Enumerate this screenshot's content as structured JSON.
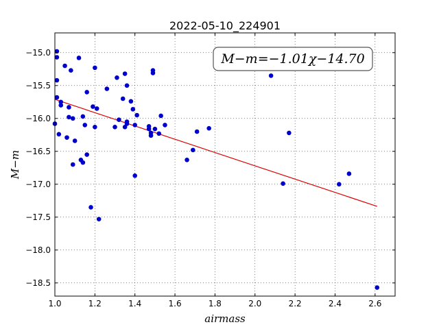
{
  "chart_data": {
    "type": "scatter",
    "title": "2022-05-10_224901",
    "xlabel": "airmass",
    "ylabel": "M−m",
    "xlim": [
      1.0,
      2.7
    ],
    "ylim": [
      -18.7,
      -14.7
    ],
    "y_inverted": true,
    "grid": true,
    "grid_style": "dotted",
    "xticks": [
      1.0,
      1.2,
      1.4,
      1.6,
      1.8,
      2.0,
      2.2,
      2.4,
      2.6
    ],
    "xtick_labels": [
      "1.0",
      "1.2",
      "1.4",
      "1.6",
      "1.8",
      "2.0",
      "2.2",
      "2.4",
      "2.6"
    ],
    "yticks": [
      -15.0,
      -15.5,
      -16.0,
      -16.5,
      -17.0,
      -17.5,
      -18.0,
      -18.5
    ],
    "ytick_labels": [
      "−15.0",
      "−15.5",
      "−16.0",
      "−16.5",
      "−17.0",
      "−17.5",
      "−18.0",
      "−18.5"
    ],
    "annotation": "M−m=−1.01χ−14.70",
    "point_color": "#0000cc",
    "fit_color": "#dd0000",
    "fit": {
      "slope": -1.01,
      "intercept": -14.7,
      "x_range": [
        1.0,
        2.61
      ]
    },
    "points": [
      [
        1.0,
        -16.08
      ],
      [
        1.01,
        -14.98
      ],
      [
        1.01,
        -15.07
      ],
      [
        1.01,
        -15.42
      ],
      [
        1.01,
        -15.68
      ],
      [
        1.02,
        -16.24
      ],
      [
        1.03,
        -15.75
      ],
      [
        1.03,
        -15.8
      ],
      [
        1.05,
        -15.2
      ],
      [
        1.06,
        -16.29
      ],
      [
        1.07,
        -15.98
      ],
      [
        1.07,
        -15.83
      ],
      [
        1.08,
        -15.27
      ],
      [
        1.09,
        -16.0
      ],
      [
        1.09,
        -16.7
      ],
      [
        1.1,
        -16.34
      ],
      [
        1.12,
        -15.08
      ],
      [
        1.13,
        -16.63
      ],
      [
        1.14,
        -15.97
      ],
      [
        1.14,
        -16.67
      ],
      [
        1.15,
        -16.1
      ],
      [
        1.16,
        -15.6
      ],
      [
        1.16,
        -16.55
      ],
      [
        1.18,
        -17.35
      ],
      [
        1.19,
        -15.82
      ],
      [
        1.2,
        -15.23
      ],
      [
        1.2,
        -16.13
      ],
      [
        1.21,
        -15.85
      ],
      [
        1.22,
        -17.53
      ],
      [
        1.26,
        -15.55
      ],
      [
        1.3,
        -16.13
      ],
      [
        1.31,
        -15.38
      ],
      [
        1.32,
        -16.02
      ],
      [
        1.34,
        -15.7
      ],
      [
        1.35,
        -15.32
      ],
      [
        1.35,
        -16.13
      ],
      [
        1.36,
        -15.5
      ],
      [
        1.36,
        -16.08
      ],
      [
        1.36,
        -16.05
      ],
      [
        1.38,
        -15.74
      ],
      [
        1.39,
        -15.86
      ],
      [
        1.4,
        -16.1
      ],
      [
        1.4,
        -16.87
      ],
      [
        1.41,
        -15.95
      ],
      [
        1.47,
        -16.12
      ],
      [
        1.47,
        -16.16
      ],
      [
        1.48,
        -16.22
      ],
      [
        1.48,
        -16.26
      ],
      [
        1.49,
        -15.27
      ],
      [
        1.49,
        -15.31
      ],
      [
        1.5,
        -16.16
      ],
      [
        1.52,
        -16.23
      ],
      [
        1.53,
        -15.96
      ],
      [
        1.55,
        -16.1
      ],
      [
        1.66,
        -16.63
      ],
      [
        1.69,
        -16.48
      ],
      [
        1.71,
        -16.2
      ],
      [
        1.77,
        -16.15
      ],
      [
        2.08,
        -15.35
      ],
      [
        2.14,
        -16.99
      ],
      [
        2.17,
        -16.22
      ],
      [
        2.42,
        -17.0
      ],
      [
        2.47,
        -16.84
      ],
      [
        2.61,
        -18.57
      ]
    ]
  }
}
